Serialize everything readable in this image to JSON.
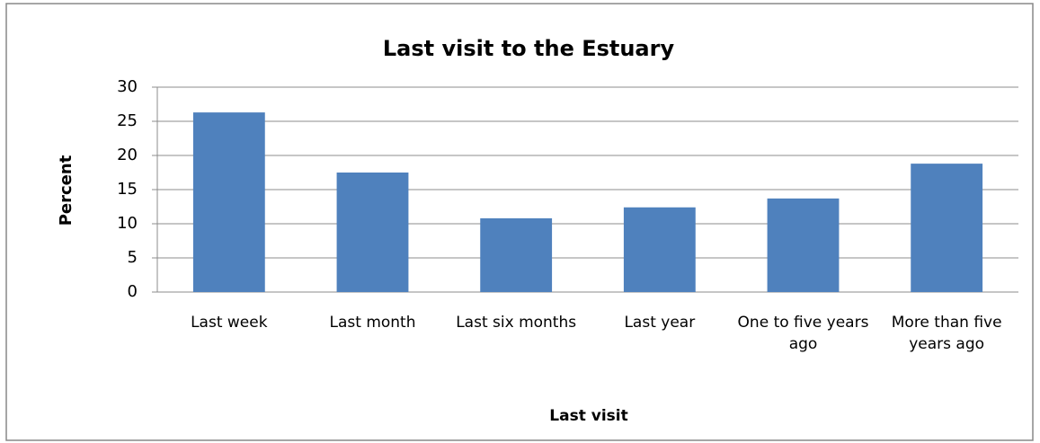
{
  "chart_data": {
    "type": "bar",
    "title": "Last visit to the Estuary",
    "x_label": "Last visit",
    "y_label": "Percent",
    "categories": [
      "Last week",
      "Last month",
      "Last six months",
      "Last year",
      "One to five years ago",
      "More than five years ago"
    ],
    "values": [
      26.3,
      17.5,
      10.8,
      12.4,
      13.7,
      18.8
    ],
    "color": "#4f81bd",
    "ylim": [
      0,
      30
    ],
    "yticks": [
      0,
      5,
      10,
      15,
      20,
      25,
      30
    ],
    "grid": true
  }
}
